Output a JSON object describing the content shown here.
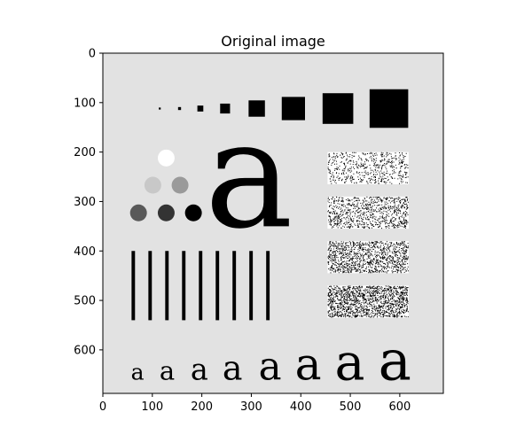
{
  "chart_data": {
    "type": "image",
    "title": "Original image",
    "xlim": [
      0,
      688
    ],
    "ylim": [
      688,
      0
    ],
    "xticks": [
      0,
      100,
      200,
      300,
      400,
      500,
      600
    ],
    "yticks": [
      0,
      100,
      200,
      300,
      400,
      500,
      600
    ],
    "background_gray": "#e2e2e2",
    "squares": [
      {
        "cx": 115,
        "cy": 112,
        "size": 4
      },
      {
        "cx": 155,
        "cy": 112,
        "size": 6
      },
      {
        "cx": 197,
        "cy": 112,
        "size": 12
      },
      {
        "cx": 247,
        "cy": 112,
        "size": 20
      },
      {
        "cx": 311,
        "cy": 112,
        "size": 33
      },
      {
        "cx": 385,
        "cy": 112,
        "size": 47
      },
      {
        "cx": 475,
        "cy": 112,
        "size": 62
      },
      {
        "cx": 578,
        "cy": 112,
        "size": 78
      }
    ],
    "circles": [
      {
        "cx": 128,
        "cy": 212,
        "r": 17,
        "color": "#ffffff"
      },
      {
        "cx": 101,
        "cy": 267,
        "r": 17,
        "color": "#c8c8c8"
      },
      {
        "cx": 156,
        "cy": 267,
        "r": 17,
        "color": "#9a9a9a"
      },
      {
        "cx": 72,
        "cy": 323,
        "r": 17,
        "color": "#595959"
      },
      {
        "cx": 128,
        "cy": 323,
        "r": 17,
        "color": "#333333"
      },
      {
        "cx": 183,
        "cy": 323,
        "r": 17,
        "color": "#000000"
      }
    ],
    "big_letter": {
      "text": "a",
      "cx": 295,
      "baseline": 350,
      "size": 300
    },
    "bars": [
      {
        "x": 58,
        "w": 7
      },
      {
        "x": 92,
        "w": 7
      },
      {
        "x": 126,
        "w": 7
      },
      {
        "x": 160,
        "w": 7
      },
      {
        "x": 194,
        "w": 7
      },
      {
        "x": 228,
        "w": 7
      },
      {
        "x": 262,
        "w": 7
      },
      {
        "x": 296,
        "w": 7
      },
      {
        "x": 330,
        "w": 7
      }
    ],
    "bars_y": [
      400,
      540
    ],
    "noise_rects": [
      {
        "x0": 454,
        "x1": 618,
        "y0": 200,
        "y1": 265,
        "density": 0.18
      },
      {
        "x0": 454,
        "x1": 618,
        "y0": 290,
        "y1": 355,
        "density": 0.28
      },
      {
        "x0": 454,
        "x1": 618,
        "y0": 380,
        "y1": 445,
        "density": 0.38
      },
      {
        "x0": 454,
        "x1": 618,
        "y0": 470,
        "y1": 535,
        "density": 0.48
      }
    ],
    "letters": [
      {
        "text": "a",
        "cx": 70,
        "size": 45
      },
      {
        "text": "a",
        "cx": 130,
        "size": 52
      },
      {
        "text": "a",
        "cx": 195,
        "size": 60
      },
      {
        "text": "a",
        "cx": 262,
        "size": 68
      },
      {
        "text": "a",
        "cx": 338,
        "size": 78
      },
      {
        "text": "a",
        "cx": 415,
        "size": 90
      },
      {
        "text": "a",
        "cx": 499,
        "size": 102
      },
      {
        "text": "a",
        "cx": 590,
        "size": 112
      }
    ],
    "letters_baseline": 660
  }
}
